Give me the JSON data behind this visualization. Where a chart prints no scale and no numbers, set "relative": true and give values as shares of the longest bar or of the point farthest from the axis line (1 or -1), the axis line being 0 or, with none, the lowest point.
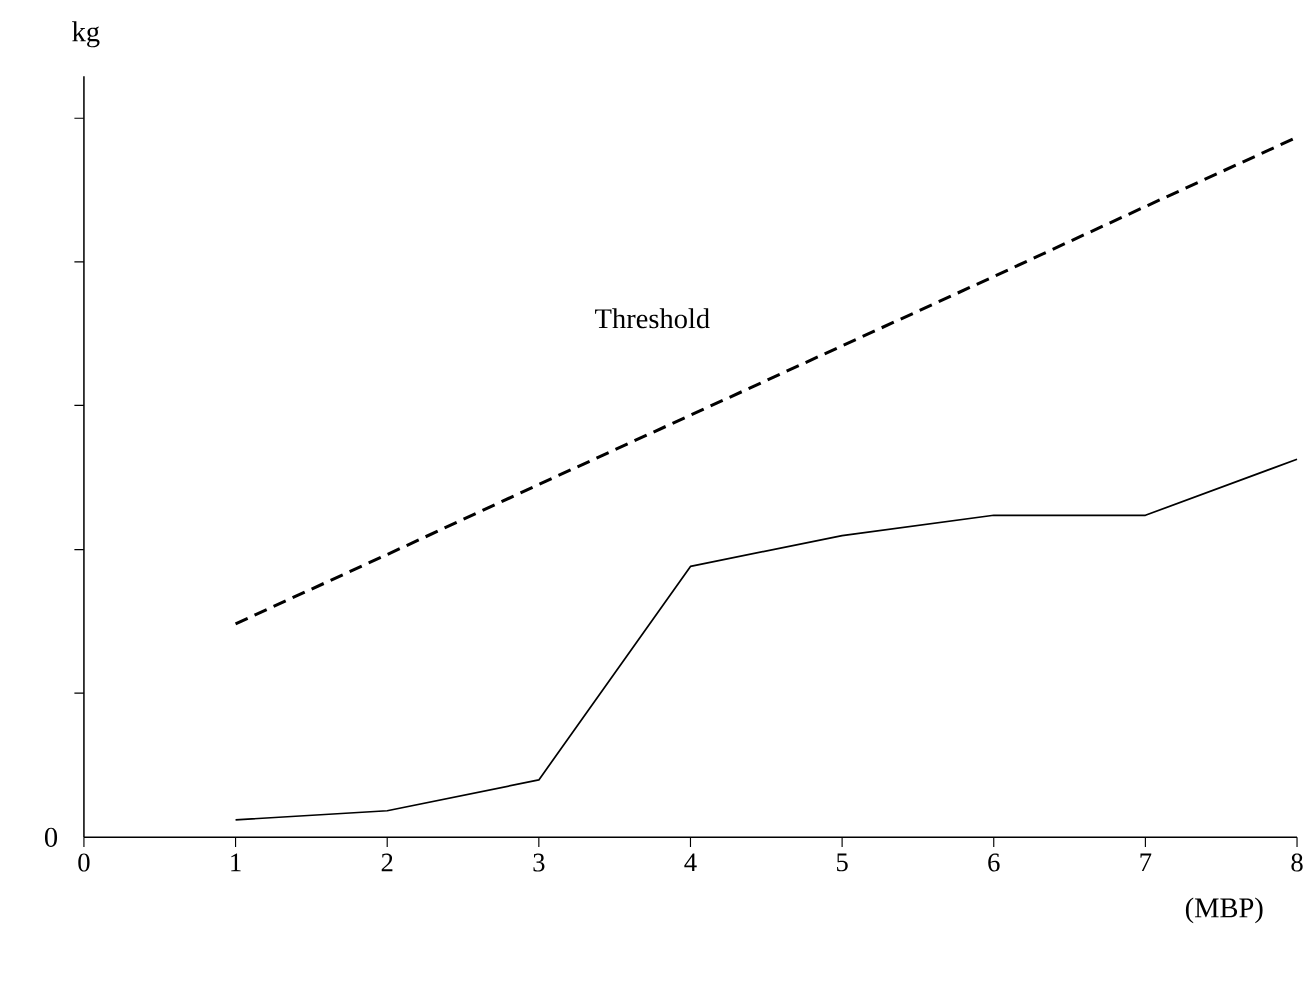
{
  "chart_data": {
    "type": "line",
    "relative": true,
    "xlabel": "(MBP)",
    "ylabel": "kg",
    "annotations": [
      "0"
    ],
    "x": [
      1,
      2,
      3,
      4,
      5,
      6,
      7,
      8
    ],
    "xlim": [
      0,
      8
    ],
    "xticks": [
      0,
      1,
      2,
      3,
      4,
      5,
      6,
      7,
      8
    ],
    "grid": false,
    "legend": false,
    "series": [
      {
        "name": "Threshold",
        "color": "#000000",
        "line_style": "dashed",
        "values": [
          0.305,
          0.404,
          0.504,
          0.603,
          0.702,
          0.801,
          0.901,
          1.0
        ]
      },
      {
        "color": "#000000",
        "line_style": "solid",
        "values": [
          0.025,
          0.038,
          0.082,
          0.387,
          0.431,
          0.46,
          0.46,
          0.54
        ]
      }
    ]
  }
}
